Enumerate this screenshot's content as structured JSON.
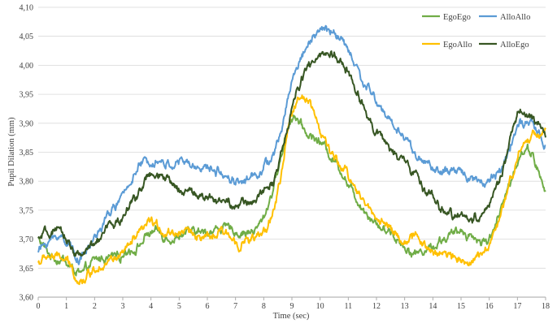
{
  "chart_data": {
    "type": "line",
    "title": "",
    "xlabel": "Time (sec)",
    "ylabel": "Pupil Dilation (mm)",
    "xlim": [
      0,
      18
    ],
    "ylim": [
      3.6,
      4.1
    ],
    "x_ticks": [
      "0",
      "1",
      "2",
      "3",
      "4",
      "5",
      "6",
      "7",
      "8",
      "9",
      "10",
      "11",
      "12",
      "13",
      "14",
      "15",
      "16",
      "17",
      "18"
    ],
    "y_ticks": [
      "3,60",
      "3,65",
      "3,70",
      "3,75",
      "3,80",
      "3,85",
      "3,90",
      "3,95",
      "4,00",
      "4,05",
      "4,10"
    ],
    "grid": "horizontal",
    "legend_position": "top-right",
    "x": [
      0,
      0.5,
      1,
      1.5,
      2,
      2.5,
      3,
      3.5,
      4,
      4.5,
      5,
      5.5,
      6,
      6.5,
      7,
      7.5,
      8,
      8.5,
      9,
      9.5,
      10,
      10.5,
      11,
      11.5,
      12,
      12.5,
      13,
      13.5,
      14,
      14.5,
      15,
      15.5,
      16,
      16.5,
      17,
      17.5,
      18
    ],
    "series": [
      {
        "name": "EgoEgo",
        "color": "#70ad47",
        "values": [
          3.7,
          3.67,
          3.66,
          3.64,
          3.66,
          3.67,
          3.68,
          3.69,
          3.71,
          3.7,
          3.7,
          3.71,
          3.71,
          3.72,
          3.71,
          3.71,
          3.74,
          3.82,
          3.91,
          3.89,
          3.87,
          3.84,
          3.8,
          3.76,
          3.73,
          3.71,
          3.69,
          3.68,
          3.69,
          3.7,
          3.71,
          3.7,
          3.7,
          3.76,
          3.84,
          3.85,
          3.78
        ]
      },
      {
        "name": "AlloAllo",
        "color": "#5b9bd5",
        "values": [
          3.68,
          3.7,
          3.7,
          3.67,
          3.7,
          3.74,
          3.77,
          3.82,
          3.83,
          3.82,
          3.83,
          3.82,
          3.82,
          3.81,
          3.8,
          3.8,
          3.82,
          3.86,
          3.97,
          4.03,
          4.06,
          4.06,
          4.03,
          3.98,
          3.94,
          3.9,
          3.87,
          3.84,
          3.82,
          3.81,
          3.81,
          3.8,
          3.8,
          3.83,
          3.9,
          3.9,
          3.86
        ]
      },
      {
        "name": "EgoAllo",
        "color": "#ffc000",
        "values": [
          3.66,
          3.67,
          3.66,
          3.63,
          3.65,
          3.66,
          3.67,
          3.7,
          3.72,
          3.71,
          3.71,
          3.71,
          3.7,
          3.71,
          3.7,
          3.7,
          3.71,
          3.78,
          3.92,
          3.95,
          3.89,
          3.84,
          3.81,
          3.77,
          3.74,
          3.72,
          3.7,
          3.7,
          3.68,
          3.68,
          3.67,
          3.67,
          3.7,
          3.76,
          3.85,
          3.88,
          3.89
        ]
      },
      {
        "name": "AlloEgo",
        "color": "#375623",
        "values": [
          3.7,
          3.71,
          3.7,
          3.67,
          3.69,
          3.72,
          3.74,
          3.78,
          3.81,
          3.8,
          3.79,
          3.78,
          3.77,
          3.77,
          3.76,
          3.76,
          3.78,
          3.82,
          3.92,
          3.99,
          4.02,
          4.02,
          3.99,
          3.94,
          3.89,
          3.86,
          3.83,
          3.8,
          3.77,
          3.75,
          3.74,
          3.74,
          3.76,
          3.82,
          3.91,
          3.9,
          3.88
        ]
      }
    ]
  }
}
